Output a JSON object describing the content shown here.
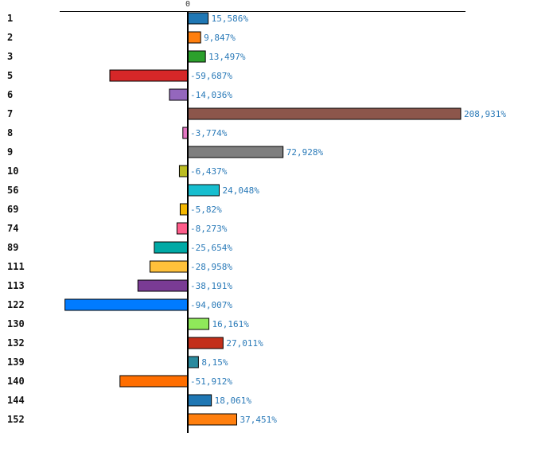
{
  "chart_data": {
    "type": "bar",
    "orientation": "horizontal",
    "title": "",
    "xlabel": "",
    "ylabel": "",
    "zero_label": "0",
    "value_suffix": "%",
    "decimal_separator": ",",
    "xlim": [
      -98,
      213
    ],
    "categories": [
      "1",
      "2",
      "3",
      "5",
      "6",
      "7",
      "8",
      "9",
      "10",
      "56",
      "69",
      "74",
      "89",
      "111",
      "113",
      "122",
      "130",
      "132",
      "139",
      "140",
      "144",
      "152"
    ],
    "values": [
      15.586,
      9.847,
      13.497,
      -59.687,
      -14.036,
      208.931,
      -3.774,
      72.928,
      -6.437,
      24.048,
      -5.82,
      -8.273,
      -25.654,
      -28.958,
      -38.191,
      -94.007,
      16.161,
      27.011,
      8.15,
      -51.912,
      18.061,
      37.451
    ],
    "labels": [
      "15,586%",
      "9,847%",
      "13,497%",
      "-59,687%",
      "-14,036%",
      "208,931%",
      "-3,774%",
      "72,928%",
      "-6,437%",
      "24,048%",
      "-5,82%",
      "-8,273%",
      "-25,654%",
      "-28,958%",
      "-38,191%",
      "-94,007%",
      "16,161%",
      "27,011%",
      "8,15%",
      "-51,912%",
      "18,061%",
      "37,451%"
    ],
    "colors": [
      "#1f77b4",
      "#ff7f0e",
      "#2ca02c",
      "#d62728",
      "#9467bd",
      "#8c564b",
      "#e377c2",
      "#7f7f7f",
      "#bcbd22",
      "#17becf",
      "#f5b800",
      "#ff5c8a",
      "#00a9a5",
      "#ffc13b",
      "#7a3b94",
      "#007bff",
      "#8fe85a",
      "#c32f1a",
      "#2a8a9e",
      "#ff6e00",
      "#1f77b4",
      "#ff7f0e"
    ],
    "grid": false,
    "legend": "none"
  }
}
